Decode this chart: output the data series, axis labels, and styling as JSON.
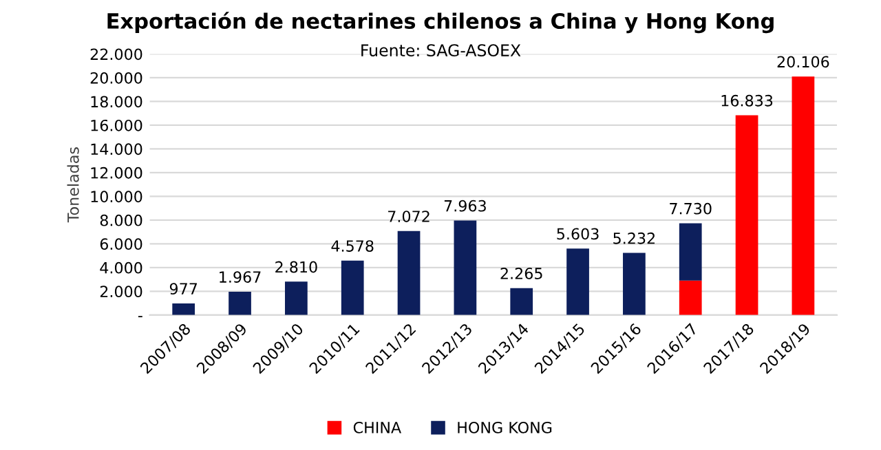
{
  "chart_data": {
    "type": "bar",
    "title": "Exportación de nectarines chilenos a China y Hong Kong",
    "subtitle": "Fuente: SAG-ASOEX",
    "ylabel": "Toneladas",
    "stacked": true,
    "categories": [
      "2007/08",
      "2008/09",
      "2009/10",
      "2010/11",
      "2011/12",
      "2012/13",
      "2013/14",
      "2014/15",
      "2015/16",
      "2016/17",
      "2017/18",
      "2018/19"
    ],
    "series": [
      {
        "name": "CHINA",
        "color": "#ff0000",
        "values": [
          null,
          null,
          null,
          null,
          null,
          null,
          null,
          null,
          null,
          2900,
          16833,
          20106
        ]
      },
      {
        "name": "HONG KONG",
        "color": "#0d1f5c",
        "values": [
          977,
          1967,
          2810,
          4578,
          7072,
          7963,
          2265,
          5603,
          5232,
          4830,
          null,
          null
        ]
      }
    ],
    "totals": [
      "977",
      "1.967",
      "2.810",
      "4.578",
      "7.072",
      "7.963",
      "2.265",
      "5.603",
      "5.232",
      "7.730",
      "16.833",
      "20.106"
    ],
    "ylim": [
      0,
      22000
    ],
    "yticks": [
      {
        "value": 0,
        "label": "-"
      },
      {
        "value": 2000,
        "label": "2.000"
      },
      {
        "value": 4000,
        "label": "4.000"
      },
      {
        "value": 6000,
        "label": "6.000"
      },
      {
        "value": 8000,
        "label": "8.000"
      },
      {
        "value": 10000,
        "label": "10.000"
      },
      {
        "value": 12000,
        "label": "12.000"
      },
      {
        "value": 14000,
        "label": "14.000"
      },
      {
        "value": 16000,
        "label": "16.000"
      },
      {
        "value": 18000,
        "label": "18.000"
      },
      {
        "value": 20000,
        "label": "20.000"
      },
      {
        "value": 22000,
        "label": "22.000"
      }
    ],
    "grid": "y",
    "legend": "bottom"
  }
}
